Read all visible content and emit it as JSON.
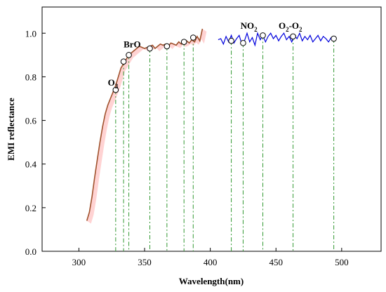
{
  "chart_data": {
    "type": "line",
    "title": "",
    "xlabel": "Wavelength(nm)",
    "ylabel": "EMI reflectance",
    "xlim": [
      272,
      530
    ],
    "ylim": [
      0.0,
      1.12
    ],
    "xticks": [
      300,
      350,
      400,
      450,
      500
    ],
    "yticks": [
      0.0,
      0.2,
      0.4,
      0.6,
      0.8,
      1.0
    ],
    "grid": false,
    "colors": {
      "uv_series": "#a0522d",
      "uv_fill": "#ff8080",
      "vis_series": "#0000dd",
      "marker_lines": "#339933"
    },
    "series": [
      {
        "x": [
          306,
          308,
          310,
          312,
          314,
          316,
          318,
          320,
          322,
          324,
          326,
          328,
          330,
          332,
          334,
          336,
          338,
          340,
          342,
          344,
          346,
          348,
          350,
          352,
          354,
          356,
          358,
          360,
          362,
          364,
          366,
          368,
          370,
          372,
          374,
          376,
          378,
          380,
          382,
          384,
          386,
          388,
          390,
          392,
          394
        ],
        "values": [
          0.14,
          0.18,
          0.25,
          0.34,
          0.42,
          0.5,
          0.57,
          0.63,
          0.67,
          0.7,
          0.73,
          0.76,
          0.8,
          0.84,
          0.86,
          0.88,
          0.9,
          0.91,
          0.92,
          0.93,
          0.94,
          0.935,
          0.93,
          0.935,
          0.94,
          0.945,
          0.93,
          0.94,
          0.95,
          0.945,
          0.95,
          0.94,
          0.955,
          0.95,
          0.945,
          0.96,
          0.95,
          0.955,
          0.965,
          0.955,
          0.97,
          0.96,
          0.985,
          0.965,
          1.02
        ]
      },
      {
        "x": [
          406,
          408,
          410,
          412,
          414,
          416,
          418,
          420,
          422,
          424,
          426,
          428,
          430,
          432,
          434,
          436,
          438,
          440,
          442,
          444,
          446,
          448,
          450,
          452,
          454,
          456,
          458,
          460,
          462,
          464,
          466,
          468,
          470,
          472,
          474,
          476,
          478,
          480,
          482,
          484,
          486,
          488,
          490,
          492,
          494,
          496
        ],
        "values": [
          0.97,
          0.975,
          0.95,
          0.985,
          0.96,
          0.99,
          0.955,
          0.975,
          0.99,
          0.95,
          0.965,
          1.0,
          0.96,
          0.98,
          0.945,
          1.0,
          0.97,
          0.99,
          0.96,
          0.985,
          1.0,
          0.975,
          0.99,
          0.965,
          0.985,
          1.0,
          0.97,
          0.985,
          0.96,
          0.99,
          0.975,
          1.0,
          0.965,
          0.985,
          0.97,
          0.99,
          0.96,
          0.975,
          0.99,
          0.965,
          0.985,
          0.975,
          0.96,
          0.98,
          0.97,
          0.975
        ]
      }
    ],
    "markers": {
      "x": [
        328,
        334,
        338,
        354,
        367,
        380,
        387,
        416,
        425,
        440,
        463,
        494
      ],
      "values": [
        0.74,
        0.87,
        0.9,
        0.93,
        0.94,
        0.96,
        0.98,
        0.965,
        0.955,
        0.99,
        0.985,
        0.975
      ]
    },
    "annotations": [
      {
        "label": "O",
        "sub": "3",
        "x": 322,
        "y": 0.76
      },
      {
        "label": "BrO",
        "sub": "",
        "x": 334,
        "y": 0.935
      },
      {
        "label": "NO",
        "sub": "2",
        "x": 423,
        "y": 1.02
      },
      {
        "label": "O",
        "sub": "2",
        "tail": "-O",
        "tail_sub": "2",
        "x": 452,
        "y": 1.02
      }
    ]
  }
}
